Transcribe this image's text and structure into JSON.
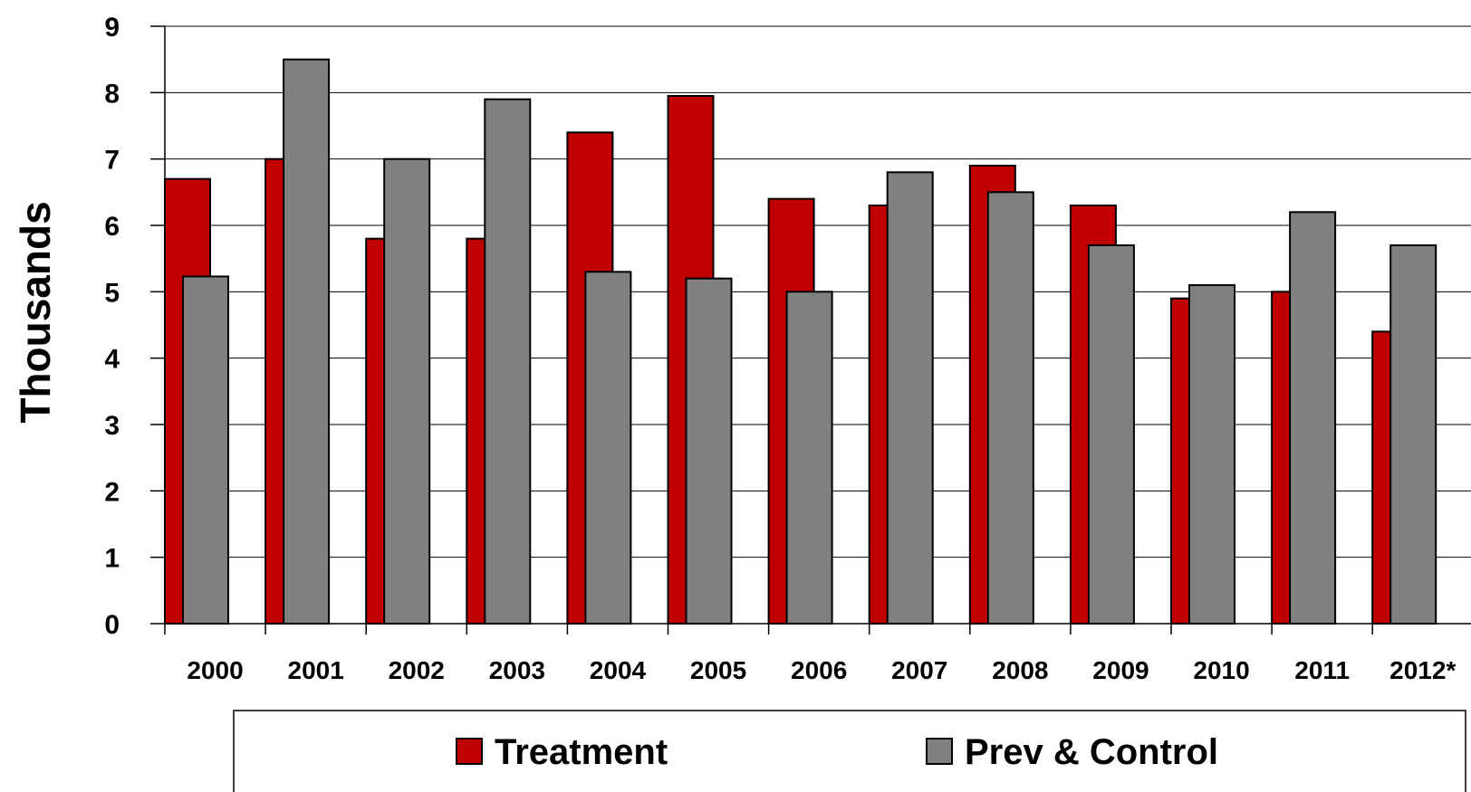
{
  "chart_data": {
    "type": "bar",
    "categories": [
      "2000",
      "2001",
      "2002",
      "2003",
      "2004",
      "2005",
      "2006",
      "2007",
      "2008",
      "2009",
      "2010",
      "2011",
      "2012*"
    ],
    "series": [
      {
        "name": "Treatment",
        "color": "#C00000",
        "values": [
          6.7,
          7.0,
          5.8,
          5.8,
          7.4,
          7.95,
          6.4,
          6.3,
          6.9,
          6.3,
          4.9,
          5.0,
          4.4
        ]
      },
      {
        "name": "Prev & Control",
        "color": "#808080",
        "values": [
          5.23,
          8.5,
          7.0,
          7.9,
          5.3,
          5.2,
          5.0,
          6.8,
          6.5,
          5.7,
          5.1,
          6.2,
          5.7
        ]
      }
    ],
    "ylabel": "Thousands",
    "xlabel": "",
    "ylim": [
      0,
      9
    ],
    "yticks": [
      "0",
      "1",
      "2",
      "3",
      "4",
      "5",
      "6",
      "7",
      "8",
      "9"
    ],
    "grid": true,
    "legend_position": "bottom"
  }
}
